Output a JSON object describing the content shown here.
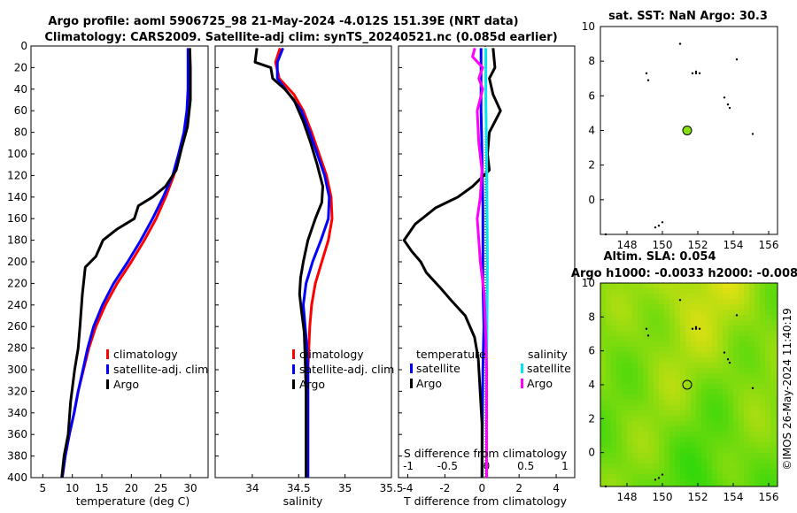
{
  "titles": {
    "line1": "Argo profile: aoml 5906725_98 21-May-2024 -4.012S 151.39E (NRT data)",
    "line2": "Climatology: CARS2009. Satellite-adj clim: synTS_20240521.nc (0.085d earlier)",
    "sst": "sat. SST: NaN Argo: 30.3",
    "sla1": "Altim. SLA: 0.054",
    "sla2": "Argo h1000: -0.0033 h2000: -0.008",
    "credit": "©IMOS 26-May-2024 11:40:19"
  },
  "legend_profile": {
    "clim": "climatology",
    "sat": "satellite-adj. clim",
    "argo": "Argo"
  },
  "legend_diff": {
    "temp_head": "temperature",
    "sal_head": "salinity",
    "sat": "satellite",
    "argo": "Argo"
  },
  "colors": {
    "clim": "#ff0000",
    "sat": "#0000ff",
    "argo": "#000000",
    "sal_sat": "#00e5ee",
    "sal_argo": "#ff00ff",
    "marker": "#88e010"
  },
  "chart_data": [
    {
      "type": "line",
      "name": "temperature",
      "xlabel": "temperature (deg C)",
      "ylabel": "",
      "xlim": [
        3,
        33
      ],
      "ylim": [
        400,
        0
      ],
      "xticks": [
        5,
        10,
        15,
        20,
        25,
        30
      ],
      "yticks": [
        0,
        20,
        40,
        60,
        80,
        100,
        120,
        140,
        160,
        180,
        200,
        220,
        240,
        260,
        280,
        300,
        320,
        340,
        360,
        380,
        400
      ],
      "series": [
        {
          "name": "climatology",
          "color": "#ff0000",
          "points": [
            [
              29.8,
              2
            ],
            [
              29.8,
              20
            ],
            [
              29.8,
              40
            ],
            [
              29.5,
              60
            ],
            [
              29.0,
              80
            ],
            [
              28.2,
              100
            ],
            [
              27.2,
              120
            ],
            [
              25.8,
              140
            ],
            [
              24.2,
              160
            ],
            [
              22.2,
              180
            ],
            [
              20.0,
              200
            ],
            [
              17.6,
              220
            ],
            [
              15.6,
              240
            ],
            [
              14.0,
              260
            ],
            [
              12.8,
              280
            ],
            [
              11.9,
              300
            ],
            [
              11.0,
              320
            ],
            [
              10.3,
              340
            ],
            [
              9.5,
              360
            ],
            [
              8.8,
              380
            ],
            [
              8.3,
              400
            ]
          ]
        },
        {
          "name": "satellite-adj. clim",
          "color": "#0000ff",
          "points": [
            [
              29.6,
              2
            ],
            [
              29.6,
              20
            ],
            [
              29.6,
              40
            ],
            [
              29.4,
              60
            ],
            [
              28.9,
              80
            ],
            [
              28.0,
              100
            ],
            [
              27.0,
              120
            ],
            [
              25.4,
              140
            ],
            [
              23.6,
              160
            ],
            [
              21.6,
              180
            ],
            [
              19.4,
              200
            ],
            [
              17.0,
              220
            ],
            [
              15.1,
              240
            ],
            [
              13.6,
              260
            ],
            [
              12.6,
              280
            ],
            [
              11.8,
              300
            ],
            [
              11.0,
              320
            ],
            [
              10.3,
              340
            ],
            [
              9.5,
              360
            ],
            [
              8.8,
              380
            ],
            [
              8.3,
              400
            ]
          ]
        },
        {
          "name": "Argo",
          "color": "#000000",
          "points": [
            [
              29.9,
              2
            ],
            [
              30.0,
              20
            ],
            [
              30.0,
              50
            ],
            [
              29.5,
              75
            ],
            [
              28.5,
              95
            ],
            [
              27.6,
              115
            ],
            [
              25.8,
              130
            ],
            [
              23.6,
              140
            ],
            [
              21.2,
              148
            ],
            [
              20.5,
              160
            ],
            [
              17.5,
              170
            ],
            [
              15.2,
              180
            ],
            [
              14.0,
              195
            ],
            [
              12.2,
              205
            ],
            [
              11.7,
              230
            ],
            [
              11.3,
              260
            ],
            [
              11.0,
              280
            ],
            [
              10.4,
              300
            ],
            [
              9.7,
              330
            ],
            [
              9.3,
              360
            ],
            [
              8.6,
              380
            ],
            [
              8.2,
              400
            ]
          ]
        }
      ]
    },
    {
      "type": "line",
      "name": "salinity",
      "xlabel": "salinity",
      "xlim": [
        33.6,
        35.5
      ],
      "ylim": [
        400,
        0
      ],
      "xticks": [
        34,
        34.5,
        35,
        35.5
      ],
      "series": [
        {
          "name": "climatology",
          "color": "#ff0000",
          "points": [
            [
              34.3,
              2
            ],
            [
              34.25,
              15
            ],
            [
              34.29,
              30
            ],
            [
              34.45,
              45
            ],
            [
              34.55,
              60
            ],
            [
              34.64,
              80
            ],
            [
              34.72,
              100
            ],
            [
              34.8,
              120
            ],
            [
              34.85,
              140
            ],
            [
              34.86,
              160
            ],
            [
              34.82,
              180
            ],
            [
              34.75,
              200
            ],
            [
              34.68,
              220
            ],
            [
              34.64,
              240
            ],
            [
              34.62,
              260
            ],
            [
              34.61,
              280
            ],
            [
              34.6,
              300
            ],
            [
              34.6,
              340
            ],
            [
              34.6,
              400
            ]
          ]
        },
        {
          "name": "satellite-adj. clim",
          "color": "#0000ff",
          "points": [
            [
              34.33,
              2
            ],
            [
              34.27,
              15
            ],
            [
              34.27,
              30
            ],
            [
              34.4,
              45
            ],
            [
              34.53,
              60
            ],
            [
              34.62,
              80
            ],
            [
              34.7,
              100
            ],
            [
              34.78,
              120
            ],
            [
              34.83,
              140
            ],
            [
              34.82,
              160
            ],
            [
              34.74,
              180
            ],
            [
              34.65,
              200
            ],
            [
              34.58,
              220
            ],
            [
              34.55,
              240
            ],
            [
              34.57,
              260
            ],
            [
              34.59,
              280
            ],
            [
              34.6,
              300
            ],
            [
              34.6,
              340
            ],
            [
              34.6,
              400
            ]
          ]
        },
        {
          "name": "Argo",
          "color": "#000000",
          "points": [
            [
              34.05,
              2
            ],
            [
              34.03,
              15
            ],
            [
              34.2,
              20
            ],
            [
              34.22,
              30
            ],
            [
              34.35,
              40
            ],
            [
              34.45,
              50
            ],
            [
              34.55,
              70
            ],
            [
              34.63,
              90
            ],
            [
              34.7,
              110
            ],
            [
              34.76,
              130
            ],
            [
              34.75,
              145
            ],
            [
              34.68,
              160
            ],
            [
              34.6,
              180
            ],
            [
              34.55,
              200
            ],
            [
              34.52,
              215
            ],
            [
              34.51,
              230
            ],
            [
              34.53,
              245
            ],
            [
              34.56,
              265
            ],
            [
              34.57,
              290
            ],
            [
              34.58,
              320
            ],
            [
              34.58,
              360
            ],
            [
              34.58,
              400
            ]
          ]
        }
      ]
    },
    {
      "type": "line",
      "name": "difference",
      "xlabel": "T difference from climatology",
      "x2label": "S difference from climatology",
      "xlim": [
        -4.5,
        5
      ],
      "ylim": [
        400,
        0
      ],
      "xticks": [
        -4,
        -2,
        0,
        2,
        4
      ],
      "x2ticks": [
        -1,
        -0.5,
        0,
        0.5,
        1
      ],
      "series": [
        {
          "name": "T satellite",
          "color": "#0000ff",
          "points": [
            [
              -0.05,
              2
            ],
            [
              -0.05,
              60
            ],
            [
              0.0,
              100
            ],
            [
              0.05,
              150
            ],
            [
              0.05,
              200
            ],
            [
              0.05,
              220
            ],
            [
              0.1,
              260
            ],
            [
              0.05,
              300
            ],
            [
              0.0,
              400
            ]
          ]
        },
        {
          "name": "T Argo",
          "color": "#000000",
          "points": [
            [
              0.6,
              2
            ],
            [
              0.7,
              20
            ],
            [
              0.4,
              30
            ],
            [
              0.6,
              45
            ],
            [
              1.0,
              60
            ],
            [
              0.4,
              80
            ],
            [
              0.3,
              100
            ],
            [
              0.4,
              115
            ],
            [
              -0.5,
              130
            ],
            [
              -1.3,
              140
            ],
            [
              -2.5,
              150
            ],
            [
              -3.6,
              165
            ],
            [
              -4.2,
              180
            ],
            [
              -3.8,
              190
            ],
            [
              -3.3,
              200
            ],
            [
              -3.0,
              210
            ],
            [
              -2.2,
              225
            ],
            [
              -1.7,
              235
            ],
            [
              -0.9,
              250
            ],
            [
              -0.4,
              270
            ],
            [
              -0.2,
              290
            ],
            [
              -0.1,
              320
            ],
            [
              0.0,
              350
            ],
            [
              0.0,
              400
            ]
          ]
        },
        {
          "name": "S satellite",
          "color": "#00e5ee",
          "points": [
            [
              -0.01,
              2
            ],
            [
              -0.01,
              50
            ],
            [
              0.0,
              100
            ],
            [
              0.01,
              200
            ],
            [
              0.0,
              300
            ],
            [
              0.0,
              400
            ]
          ]
        },
        {
          "name": "S Argo",
          "color": "#ff00ff",
          "points": [
            [
              -0.15,
              2
            ],
            [
              -0.18,
              10
            ],
            [
              -0.05,
              20
            ],
            [
              -0.1,
              30
            ],
            [
              -0.05,
              40
            ],
            [
              -0.12,
              60
            ],
            [
              -0.1,
              90
            ],
            [
              -0.06,
              115
            ],
            [
              -0.08,
              140
            ],
            [
              -0.12,
              160
            ],
            [
              -0.1,
              180
            ],
            [
              -0.08,
              200
            ],
            [
              -0.03,
              230
            ],
            [
              -0.01,
              270
            ],
            [
              0.0,
              300
            ],
            [
              0.0,
              400
            ]
          ]
        }
      ]
    },
    {
      "type": "scatter",
      "name": "sst-map",
      "title": "sat. SST: NaN Argo: 30.3",
      "xlim": [
        146.5,
        156.5
      ],
      "ylim": [
        -2,
        10
      ],
      "xticks": [
        148,
        150,
        152,
        154,
        156
      ],
      "yticks": [
        0,
        2,
        4,
        6,
        8,
        10
      ],
      "argo_position": [
        151.39,
        -4.012
      ],
      "marker_map_position": [
        151.4,
        4.0
      ],
      "islands": [
        [
          149.8,
          -1.5
        ],
        [
          149.6,
          -1.6
        ],
        [
          150.0,
          -1.3
        ],
        [
          151.9,
          7.3
        ],
        [
          151.7,
          7.3
        ],
        [
          151.9,
          7.4
        ],
        [
          152.1,
          7.3
        ],
        [
          154.2,
          8.1
        ],
        [
          153.5,
          5.9
        ],
        [
          153.7,
          5.5
        ],
        [
          153.8,
          5.3
        ],
        [
          149.2,
          6.9
        ],
        [
          149.1,
          7.3
        ],
        [
          151.0,
          9.0
        ],
        [
          155.1,
          3.8
        ],
        [
          146.8,
          -2.0
        ]
      ]
    },
    {
      "type": "heatmap",
      "name": "sla-map",
      "title": "Altim. SLA: 0.054",
      "xlim": [
        146.5,
        156.5
      ],
      "ylim": [
        -2,
        10
      ],
      "xticks": [
        148,
        150,
        152,
        154,
        156
      ],
      "yticks": [
        0,
        2,
        4,
        6,
        8,
        10
      ],
      "marker_map_position": [
        151.4,
        4.0
      ]
    }
  ]
}
